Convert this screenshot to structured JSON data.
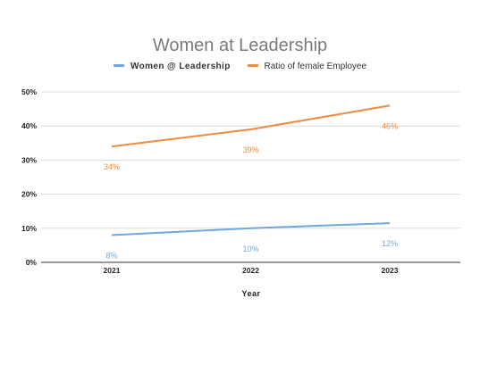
{
  "chart_data": {
    "type": "line",
    "title": "Women at Leadership",
    "xlabel": "Year",
    "ylabel": "",
    "categories": [
      "2021",
      "2022",
      "2023"
    ],
    "ylim": [
      0,
      50
    ],
    "yticks": [
      0,
      10,
      20,
      30,
      40,
      50
    ],
    "ytick_labels": [
      "0%",
      "10%",
      "20%",
      "30%",
      "40%",
      "50%"
    ],
    "grid": true,
    "legend_position": "top",
    "series": [
      {
        "name": "Women @ Leadership",
        "values": [
          8,
          10,
          11.5
        ],
        "data_labels": [
          "8%",
          "10%",
          "12%"
        ],
        "color": "#6fa8dc"
      },
      {
        "name": "Ratio of female Employee",
        "values": [
          34,
          39,
          46
        ],
        "data_labels": [
          "34%",
          "39%",
          "46%"
        ],
        "color": "#f08a3c"
      }
    ]
  }
}
